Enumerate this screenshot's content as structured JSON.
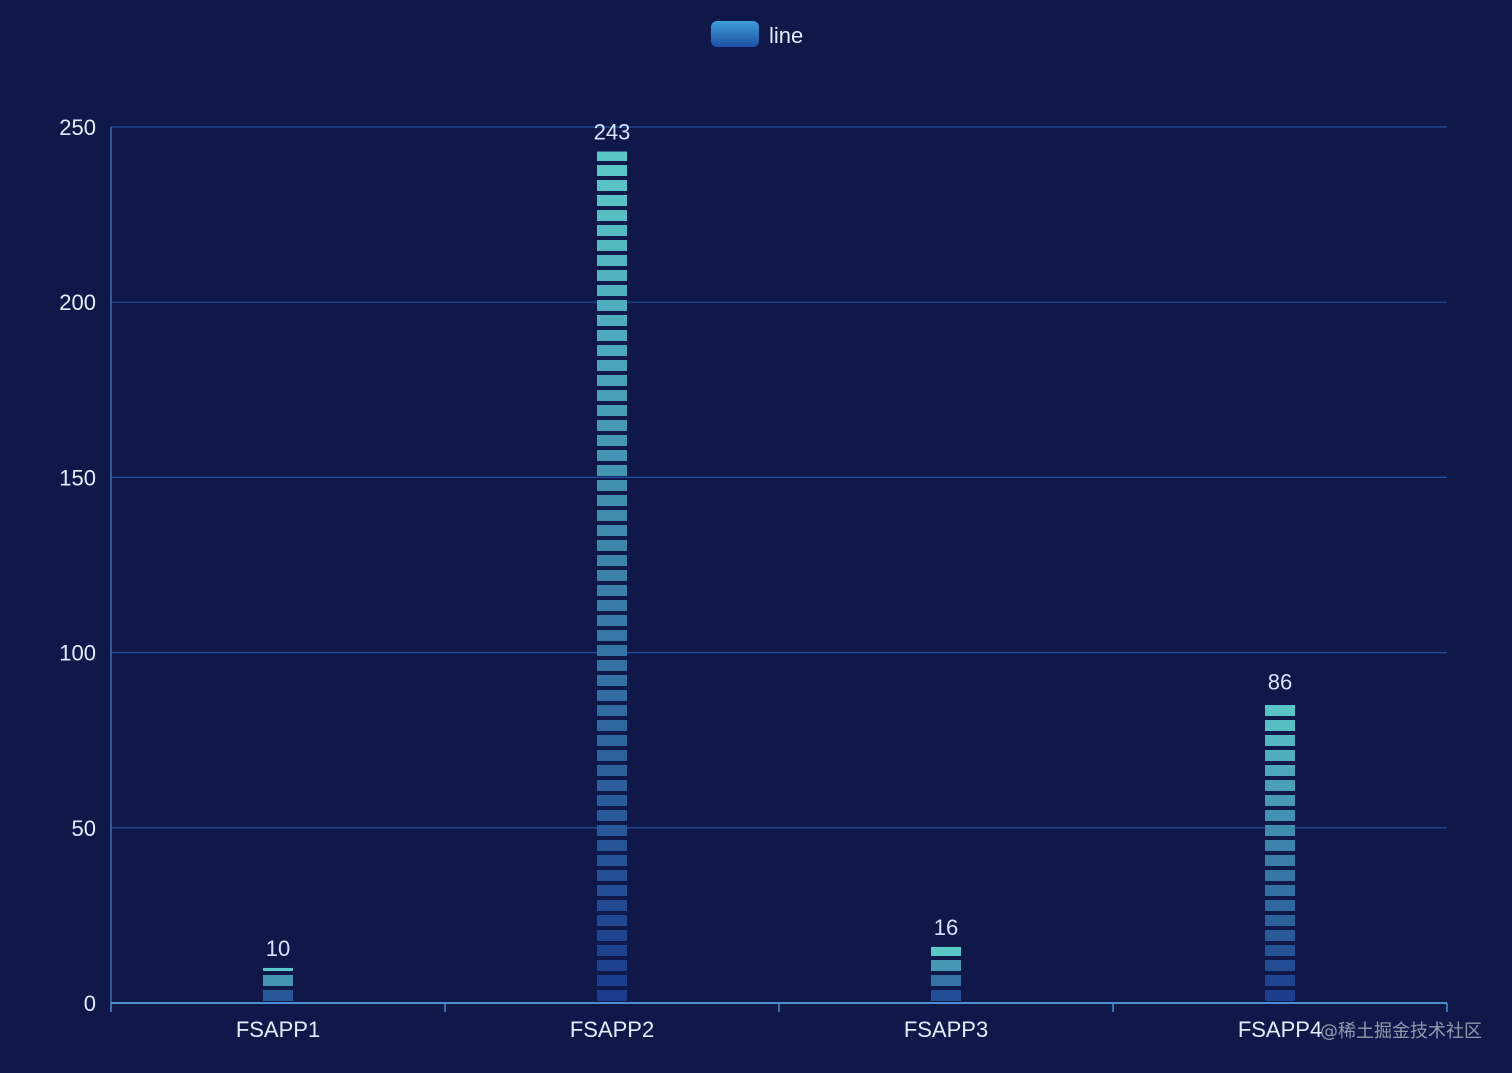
{
  "legend": {
    "label": "line"
  },
  "watermark": "@稀土掘金技术社区",
  "colors": {
    "background": "#10184a",
    "gridline": "#1f4e9e",
    "axis": "#3a6fb8",
    "text": "#e6ecff",
    "bar_bottom": "#1a3a8c",
    "bar_top": "#5bc8c8"
  },
  "chart_data": {
    "type": "bar",
    "categories": [
      "FSAPP1",
      "FSAPP2",
      "FSAPP3",
      "FSAPP4"
    ],
    "series": [
      {
        "name": "line",
        "values": [
          10,
          243,
          16,
          86
        ]
      }
    ],
    "ylim": [
      0,
      250
    ],
    "yticks": [
      0,
      50,
      100,
      150,
      200,
      250
    ],
    "grid": true,
    "legend_position": "top-center",
    "data_labels": true,
    "bar_style": "pictorial-segmented-gradient"
  }
}
